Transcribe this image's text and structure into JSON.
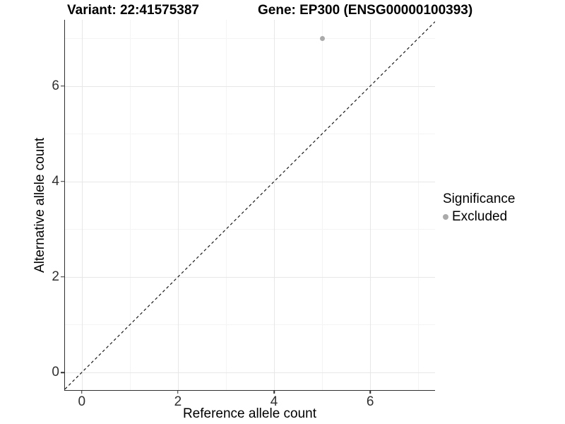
{
  "chart_data": {
    "type": "scatter",
    "title_left": "Variant: 22:41575387",
    "title_right": "Gene: EP300 (ENSG00000100393)",
    "xlabel": "Reference allele count",
    "ylabel": "Alternative allele count",
    "xlim": [
      -0.35,
      7.35
    ],
    "ylim": [
      -0.37,
      7.39
    ],
    "x_major_ticks": [
      0,
      2,
      4,
      6
    ],
    "y_major_ticks": [
      0,
      2,
      4,
      6
    ],
    "x_minor_gridlines": [
      1,
      3,
      5,
      7
    ],
    "y_minor_gridlines": [
      1,
      3,
      5,
      7
    ],
    "grid": true,
    "series": [
      {
        "name": "Excluded",
        "color": "#aaaaaa",
        "points": [
          {
            "x": 5,
            "y": 7
          }
        ]
      }
    ],
    "abline": {
      "slope": 1,
      "intercept": 0,
      "style": "dashed",
      "color": "#1a1a1a"
    },
    "legend": {
      "title": "Significance",
      "position": "right",
      "items": [
        {
          "label": "Excluded",
          "color": "#aaaaaa"
        }
      ]
    }
  }
}
